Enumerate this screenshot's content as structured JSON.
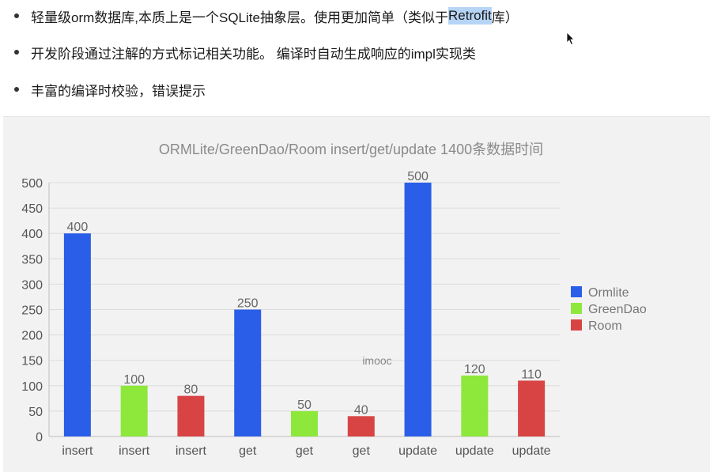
{
  "bullets": [
    {
      "text": "轻量级orm数据库,本质上是一个SQLite抽象层。使用更加简单（类似于",
      "highlight": "Retrofit",
      "suffix": "库）"
    },
    {
      "text": "开发阶段通过注解的方式标记相关功能。 编译时自动生成响应的impl实现类",
      "highlight": "",
      "suffix": ""
    },
    {
      "text": "丰富的编译时校验，错误提示",
      "highlight": "",
      "suffix": ""
    }
  ],
  "watermark": "imooc",
  "colors": {
    "ormlite": "#2a5ee8",
    "greendao": "#8ee83c",
    "room": "#d84444"
  },
  "chart_data": {
    "type": "bar",
    "title": "ORMLite/GreenDao/Room insert/get/update 1400条数据时间",
    "xlabel": "",
    "ylabel": "",
    "ylim": [
      0,
      500
    ],
    "yticks": [
      0,
      50,
      100,
      150,
      200,
      250,
      300,
      350,
      400,
      450,
      500
    ],
    "grid": true,
    "legend_position": "right",
    "categories": [
      "insert",
      "insert",
      "insert",
      "get",
      "get",
      "get",
      "update",
      "update",
      "update"
    ],
    "values": [
      400,
      100,
      80,
      250,
      50,
      40,
      500,
      120,
      110
    ],
    "series_index": [
      0,
      1,
      2,
      0,
      1,
      2,
      0,
      1,
      2
    ],
    "legend": [
      "Ormlite",
      "GreenDao",
      "Room"
    ]
  }
}
